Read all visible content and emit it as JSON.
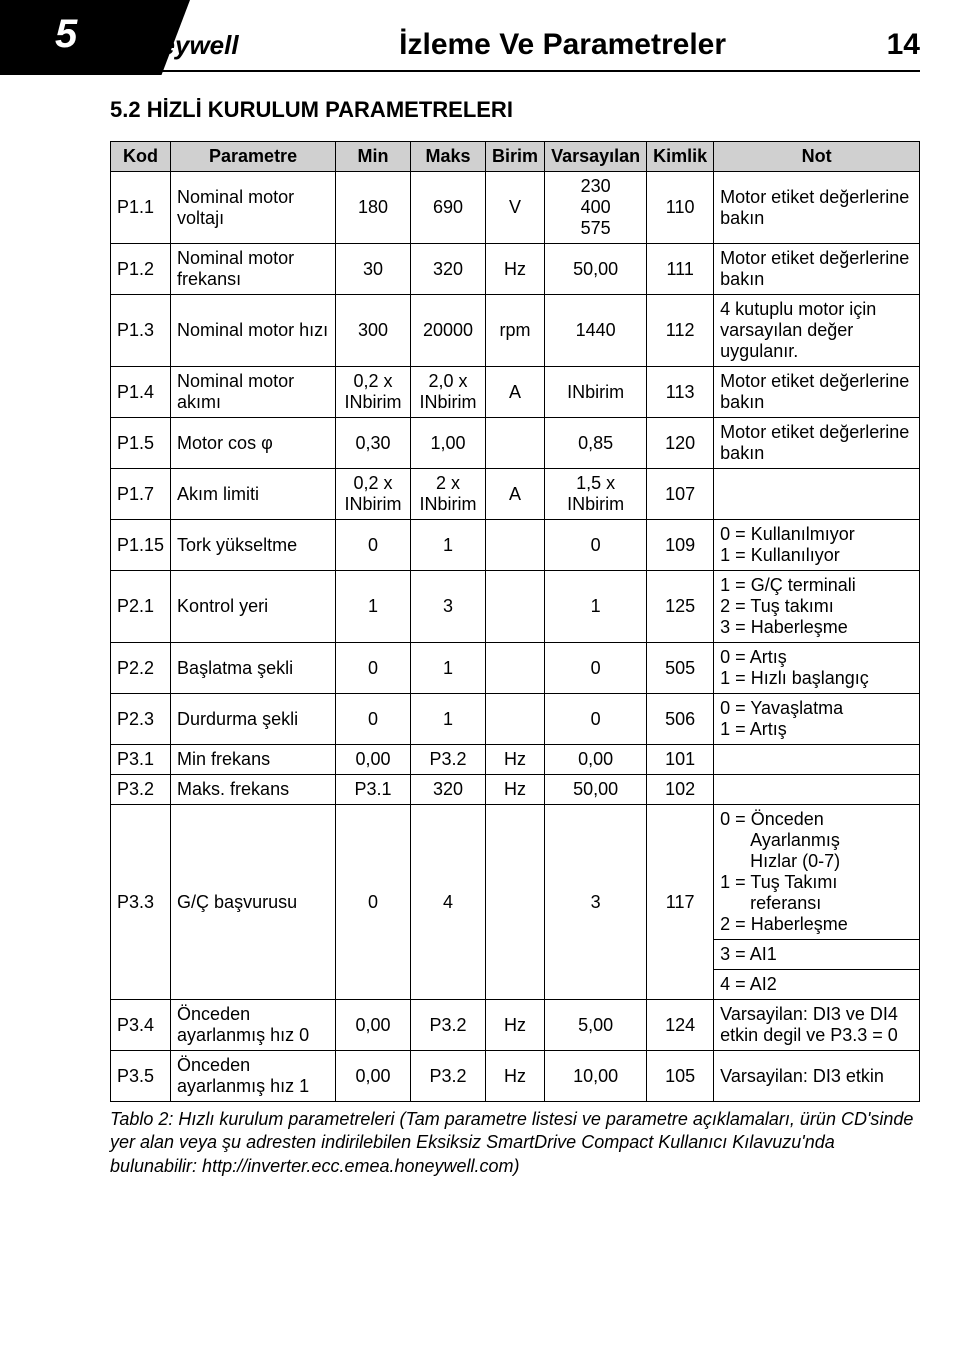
{
  "tab_number": "5",
  "brand": "Honeywell",
  "page_title": "İzleme Ve Parametreler",
  "page_number": "14",
  "section_title": "5.2 HİZLİ KURULUM PARAMETRELERI",
  "table": {
    "headers": {
      "kod": "Kod",
      "parametre": "Parametre",
      "min": "Min",
      "maks": "Maks",
      "birim": "Birim",
      "varsayilan": "Varsayılan",
      "kimlik": "Kimlik",
      "not": "Not"
    },
    "rows": [
      {
        "code": "P1.1",
        "param": "Nominal motor voltajı",
        "min": "180",
        "max": "690",
        "unit": "V",
        "def": "230\n400\n575",
        "id": "110",
        "note": "Motor etiket değerlerine bakın"
      },
      {
        "code": "P1.2",
        "param": "Nominal motor frekansı",
        "min": "30",
        "max": "320",
        "unit": "Hz",
        "def": "50,00",
        "id": "111",
        "note": "Motor etiket değerlerine bakın"
      },
      {
        "code": "P1.3",
        "param": "Nominal motor hızı",
        "min": "300",
        "max": "20000",
        "unit": "rpm",
        "def": "1440",
        "id": "112",
        "note": "4 kutuplu motor için varsayılan değer uygulanır."
      },
      {
        "code": "P1.4",
        "param": "Nominal motor akımı",
        "min": "0,2 x INbirim",
        "max": "2,0 x INbirim",
        "unit": "A",
        "def": "INbirim",
        "id": "113",
        "note": "Motor etiket değerlerine bakın"
      },
      {
        "code": "P1.5",
        "param": "Motor cos φ",
        "min": "0,30",
        "max": "1,00",
        "unit": "",
        "def": "0,85",
        "id": "120",
        "note": "Motor etiket değerlerine bakın"
      },
      {
        "code": "P1.7",
        "param": "Akım limiti",
        "min": "0,2 x INbirim",
        "max": "2 x INbirim",
        "unit": "A",
        "def": "1,5 x INbirim",
        "id": "107",
        "note": ""
      },
      {
        "code": "P1.15",
        "param": "Tork yükseltme",
        "min": "0",
        "max": "1",
        "unit": "",
        "def": "0",
        "id": "109",
        "note": "0 = Kullanılmıyor\n1 = Kullanılıyor"
      },
      {
        "code": "P2.1",
        "param": "Kontrol yeri",
        "min": "1",
        "max": "3",
        "unit": "",
        "def": "1",
        "id": "125",
        "note": "1 = G/Ç terminali\n2 = Tuş takımı\n3 = Haberleşme"
      },
      {
        "code": "P2.2",
        "param": "Başlatma şekli",
        "min": "0",
        "max": "1",
        "unit": "",
        "def": "0",
        "id": "505",
        "note": "0 = Artış\n1 = Hızlı başlangıç"
      },
      {
        "code": "P2.3",
        "param": "Durdurma şekli",
        "min": "0",
        "max": "1",
        "unit": "",
        "def": "0",
        "id": "506",
        "note": "0 = Yavaşlatma\n1 = Artış"
      },
      {
        "code": "P3.1",
        "param": "Min frekans",
        "min": "0,00",
        "max": "P3.2",
        "unit": "Hz",
        "def": "0,00",
        "id": "101",
        "note": ""
      },
      {
        "code": "P3.2",
        "param": "Maks. frekans",
        "min": "P3.1",
        "max": "320",
        "unit": "Hz",
        "def": "50,00",
        "id": "102",
        "note": ""
      },
      {
        "code": "P3.3",
        "param": "G/Ç başvurusu",
        "min": "0",
        "max": "4",
        "unit": "",
        "def": "3",
        "id": "117",
        "note": "SPECIAL_P33"
      },
      {
        "code": "P3.4",
        "param": "Önceden ayarlanmış hız 0",
        "min": "0,00",
        "max": "P3.2",
        "unit": "Hz",
        "def": "5,00",
        "id": "124",
        "note": "Varsayilan: DI3 ve DI4 etkin degil ve P3.3 = 0"
      },
      {
        "code": "P3.5",
        "param": "Önceden ayarlanmış hız 1",
        "min": "0,00",
        "max": "P3.2",
        "unit": "Hz",
        "def": "10,00",
        "id": "105",
        "note": "Varsayilan: DI3 etkin"
      }
    ],
    "p33_note": {
      "line1": "0 = Önceden",
      "line2": "Ayarlanmış",
      "line3": "Hızlar (0-7)",
      "line4": "1 = Tuş Takımı",
      "line5": "referansı",
      "line6": "2 = Haberleşme",
      "line7": "3 = AI1",
      "line8": "4 = AI2"
    }
  },
  "caption": "Tablo 2: Hızlı kurulum parametreleri  (Tam parametre listesi ve parametre açıklamaları, ürün CD'sinde yer alan veya şu adresten indirilebilen Eksiksiz SmartDrive Compact Kullanıcı Kılavuzu'nda bulunabilir: http://inverter.ecc.emea.honeywell.com)"
}
